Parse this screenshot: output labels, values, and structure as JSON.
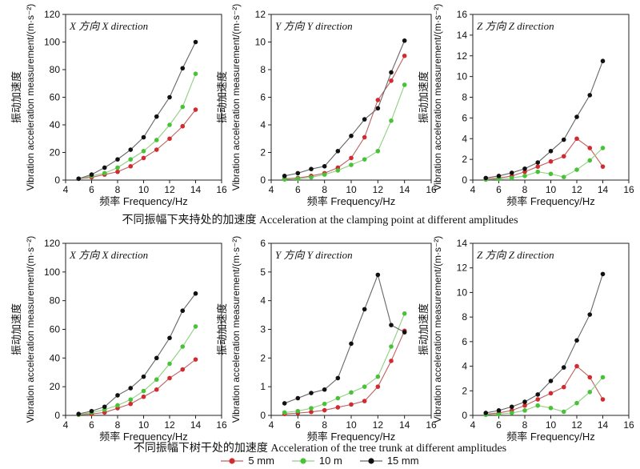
{
  "captions": {
    "top": "不同振幅下夹持处的加速度 Acceleration at the clamping point at different amplitudes",
    "bottom": "不同振幅下树干处的加速度 Acceleration of the tree trunk at different amplitudes"
  },
  "axis_labels": {
    "xlabel": "频率 Frequency/Hz",
    "ylabel_cn": "振动加速度",
    "ylabel_en": "Vibration acceleration measurement/(m·s⁻²)"
  },
  "series_style": [
    {
      "name": "5 mm",
      "color": "#d12a2f",
      "line": "#c06060"
    },
    {
      "name": "10 m",
      "color": "#49c139",
      "line": "#8fd080"
    },
    {
      "name": "15 mm",
      "color": "#111111",
      "line": "#666666"
    }
  ],
  "chart_data": [
    {
      "type": "line",
      "title": "X 方向 X direction",
      "x": [
        5,
        6,
        7,
        8,
        9,
        10,
        11,
        12,
        13,
        14
      ],
      "xlim": [
        4,
        16
      ],
      "xticks": [
        4,
        6,
        8,
        10,
        12,
        14,
        16
      ],
      "ylim": [
        0,
        120
      ],
      "yticks": [
        0,
        20,
        40,
        60,
        80,
        100,
        120
      ],
      "series": [
        {
          "name": "5 mm",
          "values": [
            1,
            2,
            4,
            6,
            10,
            16,
            22,
            30,
            39,
            51
          ]
        },
        {
          "name": "10 m",
          "values": [
            1,
            3,
            5,
            9,
            15,
            21,
            29,
            40,
            53,
            77
          ]
        },
        {
          "name": "15 mm",
          "values": [
            1,
            4,
            9,
            15,
            22,
            31,
            46,
            60,
            81,
            100
          ]
        }
      ]
    },
    {
      "type": "line",
      "title": "Y 方向 Y direction",
      "x": [
        5,
        6,
        7,
        8,
        9,
        10,
        11,
        12,
        13,
        14
      ],
      "xlim": [
        4,
        16
      ],
      "xticks": [
        4,
        6,
        8,
        10,
        12,
        14,
        16
      ],
      "ylim": [
        0,
        12
      ],
      "yticks": [
        0,
        2,
        4,
        6,
        8,
        10,
        12
      ],
      "series": [
        {
          "name": "5 mm",
          "values": [
            0.1,
            0.15,
            0.3,
            0.5,
            0.9,
            1.6,
            3.1,
            5.8,
            7.2,
            9.0
          ]
        },
        {
          "name": "10 m",
          "values": [
            0.05,
            0.1,
            0.2,
            0.4,
            0.7,
            1.1,
            1.5,
            2.1,
            4.3,
            6.9
          ]
        },
        {
          "name": "15 mm",
          "values": [
            0.3,
            0.5,
            0.8,
            1.0,
            2.1,
            3.2,
            4.4,
            5.2,
            7.8,
            10.1
          ]
        }
      ]
    },
    {
      "type": "line",
      "title": "Z 方向 Z direction",
      "x": [
        5,
        6,
        7,
        8,
        9,
        10,
        11,
        12,
        13,
        14
      ],
      "xlim": [
        4,
        16
      ],
      "xticks": [
        4,
        6,
        8,
        10,
        12,
        14,
        16
      ],
      "ylim": [
        0,
        16
      ],
      "yticks": [
        0,
        2,
        4,
        6,
        8,
        10,
        12,
        14,
        16
      ],
      "series": [
        {
          "name": "5 mm",
          "values": [
            0.1,
            0.2,
            0.4,
            0.8,
            1.3,
            1.8,
            2.3,
            4.0,
            3.1,
            1.3
          ]
        },
        {
          "name": "10 m",
          "values": [
            0.05,
            0.1,
            0.2,
            0.4,
            0.8,
            0.6,
            0.3,
            1.0,
            1.9,
            3.1
          ]
        },
        {
          "name": "15 mm",
          "values": [
            0.2,
            0.4,
            0.7,
            1.1,
            1.7,
            2.8,
            3.9,
            6.1,
            8.2,
            11.5
          ]
        }
      ]
    },
    {
      "type": "line",
      "title": "X 方向 X direction",
      "x": [
        5,
        6,
        7,
        8,
        9,
        10,
        11,
        12,
        13,
        14
      ],
      "xlim": [
        4,
        16
      ],
      "xticks": [
        4,
        6,
        8,
        10,
        12,
        14,
        16
      ],
      "ylim": [
        0,
        120
      ],
      "yticks": [
        0,
        20,
        40,
        60,
        80,
        100,
        120
      ],
      "series": [
        {
          "name": "5 mm",
          "values": [
            0.5,
            1,
            2,
            5,
            8,
            13,
            18,
            26,
            32,
            39
          ]
        },
        {
          "name": "10 m",
          "values": [
            0.5,
            2,
            4,
            7,
            11,
            17,
            25,
            36,
            48,
            62
          ]
        },
        {
          "name": "15 mm",
          "values": [
            1,
            3,
            6,
            14,
            19,
            27,
            40,
            54,
            73,
            85
          ]
        }
      ]
    },
    {
      "type": "line",
      "title": "Y 方向 Y direction",
      "x": [
        5,
        6,
        7,
        8,
        9,
        10,
        11,
        12,
        13,
        14
      ],
      "xlim": [
        4,
        16
      ],
      "xticks": [
        4,
        6,
        8,
        10,
        12,
        14,
        16
      ],
      "ylim": [
        0,
        6
      ],
      "yticks": [
        0,
        1,
        2,
        3,
        4,
        5,
        6
      ],
      "series": [
        {
          "name": "5 mm",
          "values": [
            0.05,
            0.08,
            0.12,
            0.18,
            0.28,
            0.38,
            0.5,
            1.0,
            1.9,
            2.95
          ]
        },
        {
          "name": "10 m",
          "values": [
            0.1,
            0.15,
            0.25,
            0.4,
            0.6,
            0.8,
            1.0,
            1.35,
            2.4,
            3.55
          ]
        },
        {
          "name": "15 mm",
          "values": [
            0.42,
            0.6,
            0.78,
            0.9,
            1.3,
            2.5,
            3.7,
            4.9,
            3.15,
            2.9
          ]
        }
      ]
    },
    {
      "type": "line",
      "title": "Z 方向 Z direction",
      "x": [
        5,
        6,
        7,
        8,
        9,
        10,
        11,
        12,
        13,
        14
      ],
      "xlim": [
        4,
        16
      ],
      "xticks": [
        4,
        6,
        8,
        10,
        12,
        14,
        16
      ],
      "ylim": [
        0,
        14
      ],
      "yticks": [
        0,
        2,
        4,
        6,
        8,
        10,
        12,
        14
      ],
      "series": [
        {
          "name": "5 mm",
          "values": [
            0.1,
            0.2,
            0.4,
            0.8,
            1.3,
            1.8,
            2.3,
            4.0,
            3.1,
            1.3
          ]
        },
        {
          "name": "10 m",
          "values": [
            0.05,
            0.1,
            0.2,
            0.4,
            0.8,
            0.6,
            0.3,
            1.0,
            1.9,
            3.1
          ]
        },
        {
          "name": "15 mm",
          "values": [
            0.2,
            0.4,
            0.7,
            1.1,
            1.7,
            2.8,
            3.9,
            6.1,
            8.2,
            11.5
          ]
        }
      ]
    }
  ]
}
